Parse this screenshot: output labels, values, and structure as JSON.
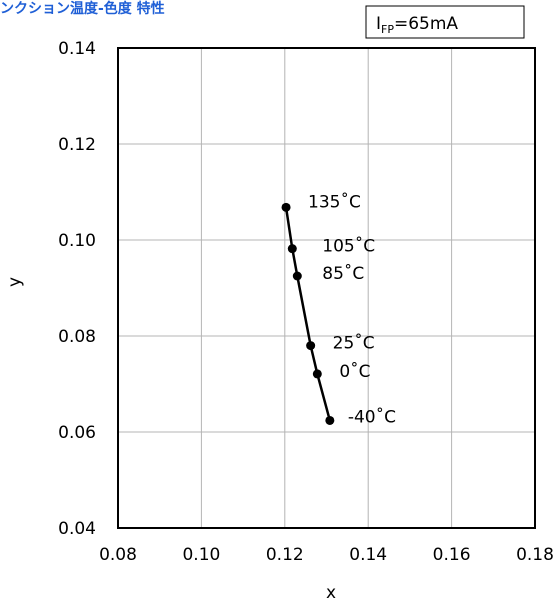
{
  "chart_data": {
    "type": "line",
    "title": "ンクション温度-色度 特性",
    "condition": {
      "symbol": "I",
      "subscript": "FP",
      "value": "=65mA"
    },
    "xlabel": "x",
    "ylabel": "y",
    "xlim": [
      0.08,
      0.18
    ],
    "ylim": [
      0.04,
      0.14
    ],
    "xticks": [
      "0.08",
      "0.10",
      "0.12",
      "0.14",
      "0.16",
      "0.18"
    ],
    "yticks": [
      "0.04",
      "0.06",
      "0.08",
      "0.10",
      "0.12",
      "0.14"
    ],
    "grid": true,
    "series": [
      {
        "points": [
          {
            "x": 0.1203,
            "y": 0.1068,
            "label": "135˚C"
          },
          {
            "x": 0.1218,
            "y": 0.0982,
            "label": "105˚C"
          },
          {
            "x": 0.123,
            "y": 0.0925,
            "label": "85˚C"
          },
          {
            "x": 0.1262,
            "y": 0.078,
            "label": "25˚C"
          },
          {
            "x": 0.1278,
            "y": 0.0721,
            "label": "0˚C"
          },
          {
            "x": 0.1308,
            "y": 0.0624,
            "label": "-40˚C"
          }
        ]
      }
    ],
    "colors": {
      "title": "#1f5fd6",
      "line": "#000000",
      "grid": "#b4b4b4"
    }
  }
}
